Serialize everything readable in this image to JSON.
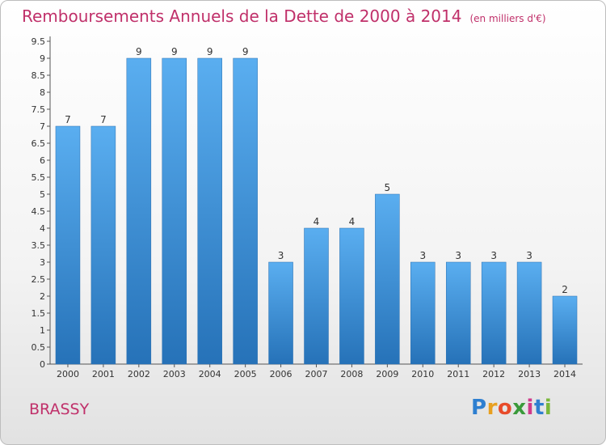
{
  "chart_data": {
    "type": "bar",
    "title": "Remboursements Annuels de la Dette de 2000 à 2014",
    "unit": "(en milliers d'€)",
    "categories": [
      "2000",
      "2001",
      "2002",
      "2003",
      "2004",
      "2005",
      "2006",
      "2007",
      "2008",
      "2009",
      "2010",
      "2011",
      "2012",
      "2013",
      "2014"
    ],
    "values": [
      7,
      7,
      9,
      9,
      9,
      9,
      3,
      4,
      4,
      5,
      3,
      3,
      3,
      3,
      2
    ],
    "yticks": [
      "0",
      "0.5",
      "1",
      "1.5",
      "2",
      "2.5",
      "3",
      "3.5",
      "4",
      "4.5",
      "5",
      "5.5",
      "6",
      "6.5",
      "7",
      "7.5",
      "8",
      "8.5",
      "9",
      "9.5"
    ],
    "ylim": [
      0,
      9.5
    ],
    "bar_color": "#3d8fd6",
    "grid": false
  },
  "footer": {
    "place": "BRASSY",
    "logo": [
      "P",
      "r",
      "o",
      "x",
      "i",
      "t",
      "i"
    ]
  }
}
